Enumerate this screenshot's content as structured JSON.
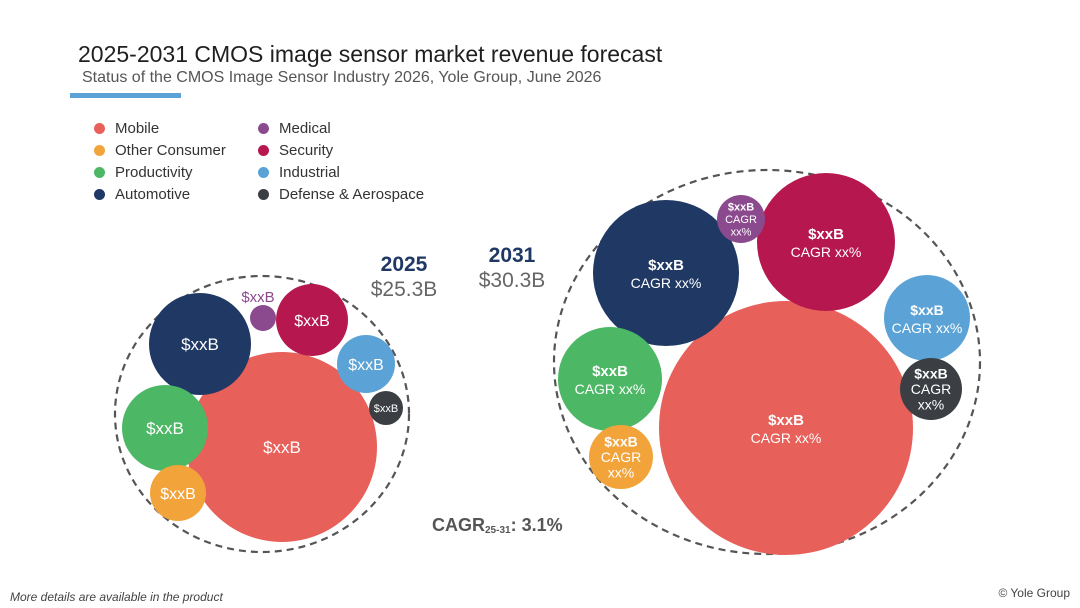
{
  "title": "2025-2031 CMOS image sensor market revenue forecast",
  "subtitle": "Status of the CMOS Image Sensor Industry 2026, Yole Group, June 2026",
  "accent_color": "#5ba3d6",
  "legend": [
    {
      "label": "Mobile",
      "color": "#e8605a"
    },
    {
      "label": "Other Consumer",
      "color": "#f2a43a"
    },
    {
      "label": "Productivity",
      "color": "#4cb865"
    },
    {
      "label": "Automotive",
      "color": "#1f3864"
    },
    {
      "label": "Medical",
      "color": "#8b4a8e"
    },
    {
      "label": "Security",
      "color": "#b5174e"
    },
    {
      "label": "Industrial",
      "color": "#5ba3d6"
    },
    {
      "label": "Defense & Aerospace",
      "color": "#3b3f44"
    }
  ],
  "chart_data": {
    "type": "bubble",
    "years": [
      {
        "year": "2025",
        "total": "$25.3B",
        "segments": [
          {
            "name": "Mobile",
            "value_label": "$xxB"
          },
          {
            "name": "Automotive",
            "value_label": "$xxB"
          },
          {
            "name": "Productivity",
            "value_label": "$xxB"
          },
          {
            "name": "Other Consumer",
            "value_label": "$xxB"
          },
          {
            "name": "Security",
            "value_label": "$xxB"
          },
          {
            "name": "Medical",
            "value_label": "$xxB"
          },
          {
            "name": "Industrial",
            "value_label": "$xxB"
          },
          {
            "name": "Defense & Aerospace",
            "value_label": "$xxB"
          }
        ]
      },
      {
        "year": "2031",
        "total": "$30.3B",
        "segments": [
          {
            "name": "Mobile",
            "value_label": "$xxB",
            "cagr_label": "CAGR xx%"
          },
          {
            "name": "Automotive",
            "value_label": "$xxB",
            "cagr_label": "CAGR xx%"
          },
          {
            "name": "Security",
            "value_label": "$xxB",
            "cagr_label": "CAGR xx%"
          },
          {
            "name": "Medical",
            "value_label": "$xxB",
            "cagr_label": "CAGR xx%"
          },
          {
            "name": "Industrial",
            "value_label": "$xxB",
            "cagr_label": "CAGR xx%"
          },
          {
            "name": "Productivity",
            "value_label": "$xxB",
            "cagr_label": "CAGR xx%"
          },
          {
            "name": "Defense & Aerospace",
            "value_label": "$xxB",
            "cagr_label": "CAGR xx%"
          },
          {
            "name": "Other Consumer",
            "value_label": "$xxB",
            "cagr_label": "CAGR xx%"
          }
        ]
      }
    ],
    "cagr_total": {
      "label": "CAGR",
      "period": "25-31",
      "value": ": 3.1%"
    }
  },
  "footer": {
    "note": "More details are available in the product",
    "copyright": "© Yole Group"
  }
}
